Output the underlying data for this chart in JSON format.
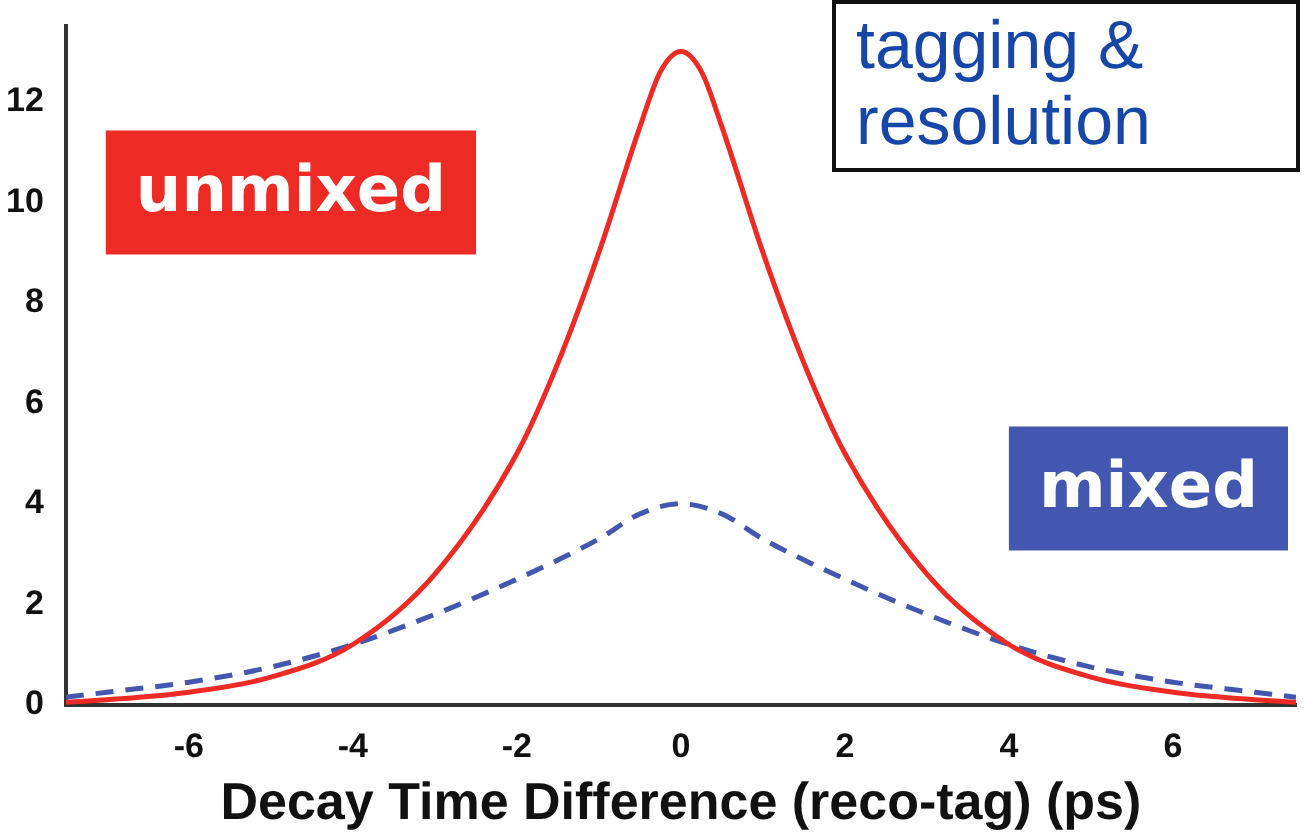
{
  "chart_data": {
    "type": "line",
    "xlabel": "Decay Time Difference (reco-tag) (ps)",
    "annotations": [
      "tagging & resolution"
    ],
    "xlim": [
      -7.5,
      7.5
    ],
    "xticks": [
      -6,
      -4,
      -2,
      0,
      2,
      4,
      6
    ],
    "ylim": [
      0,
      13.5
    ],
    "yticks": [
      0,
      2,
      4,
      6,
      8,
      10,
      12
    ],
    "grid": false,
    "legend": false,
    "marker": "none",
    "series": [
      {
        "name": "unmixed",
        "color": "#ee2a24",
        "line_style": "solid",
        "x": [
          -7.5,
          -7,
          -6,
          -5,
          -4,
          -3,
          -2,
          -1.5,
          -1,
          -0.5,
          -0.25,
          0,
          0.25,
          0.5,
          1,
          1.5,
          2,
          3,
          4,
          5,
          6,
          7,
          7.5
        ],
        "values": [
          0.05,
          0.1,
          0.25,
          0.55,
          1.2,
          2.6,
          5.0,
          6.8,
          9.0,
          11.5,
          12.6,
          13,
          12.6,
          11.5,
          9.0,
          6.8,
          5.0,
          2.6,
          1.2,
          0.55,
          0.25,
          0.1,
          0.05
        ]
      },
      {
        "name": "mixed",
        "color": "#4457b0",
        "line_style": "dashed",
        "x": [
          -7.5,
          -7,
          -6,
          -5,
          -4,
          -3,
          -2,
          -1,
          -0.5,
          0,
          0.5,
          1,
          2,
          3,
          4,
          5,
          6,
          7,
          7.5
        ],
        "values": [
          0.15,
          0.25,
          0.45,
          0.75,
          1.2,
          1.8,
          2.5,
          3.3,
          3.8,
          4,
          3.8,
          3.3,
          2.5,
          1.8,
          1.2,
          0.75,
          0.45,
          0.25,
          0.15
        ]
      }
    ]
  }
}
